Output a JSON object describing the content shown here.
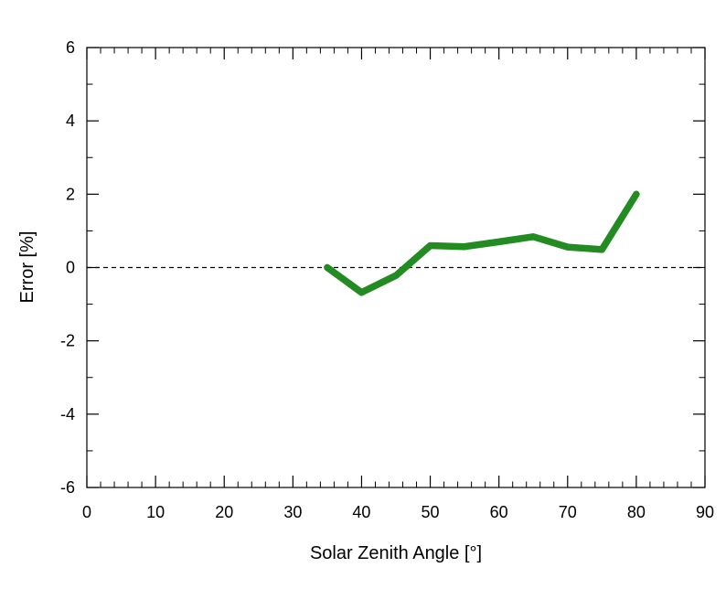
{
  "chart_data": {
    "type": "line",
    "title": "",
    "xlabel": "Solar Zenith Angle [°]",
    "ylabel": "Error [%]",
    "xlim": [
      0,
      90
    ],
    "ylim": [
      -6,
      6
    ],
    "x_major_ticks": [
      0,
      10,
      20,
      30,
      40,
      50,
      60,
      70,
      80,
      90
    ],
    "x_tick_labels": [
      "0",
      "10",
      "20",
      "30",
      "40",
      "50",
      "60",
      "70",
      "80",
      "90"
    ],
    "x_minor_step": 2,
    "y_major_ticks": [
      -6,
      -4,
      -2,
      0,
      2,
      4,
      6
    ],
    "y_tick_labels": [
      "-6",
      "-4",
      "-2",
      "0",
      "2",
      "4",
      "6"
    ],
    "y_minor_step": 1,
    "grid": false,
    "reference_line": {
      "y": 0,
      "style": "dashed",
      "color": "#000000"
    },
    "series": [
      {
        "name": "Error",
        "color": "#228B22",
        "x": [
          35,
          40,
          45,
          50,
          55,
          60,
          65,
          70,
          75,
          80
        ],
        "y": [
          0.0,
          -0.68,
          -0.22,
          0.6,
          0.57,
          0.7,
          0.84,
          0.56,
          0.49,
          2.0
        ]
      }
    ]
  }
}
